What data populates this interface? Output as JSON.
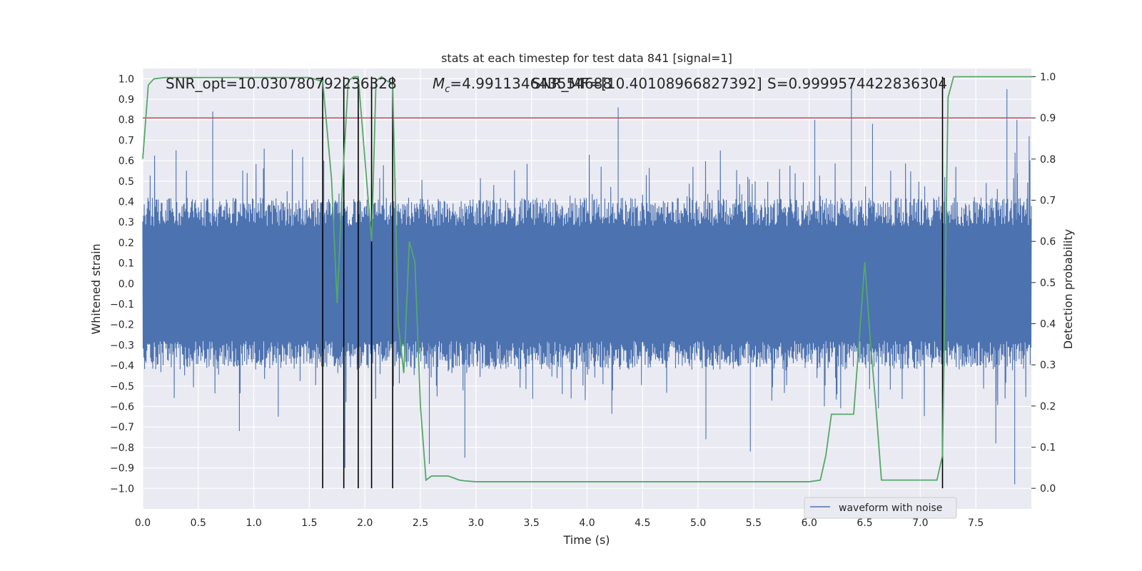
{
  "chart_data": {
    "type": "line",
    "title": "stats at each timestep for test data 841 [signal=1]",
    "xlabel": "Time (s)",
    "ylabel": "Whitened strain",
    "y2label": "Detection probability",
    "xlim": [
      0,
      8
    ],
    "ylim": [
      -1.1,
      1.05
    ],
    "y2lim": [
      -0.05,
      1.02
    ],
    "xticks": [
      "0.0",
      "0.5",
      "1.0",
      "1.5",
      "2.0",
      "2.5",
      "3.0",
      "3.5",
      "4.0",
      "4.5",
      "5.0",
      "5.5",
      "6.0",
      "6.5",
      "7.0",
      "7.5"
    ],
    "yticks": [
      "1.0",
      "0.9",
      "0.8",
      "0.7",
      "0.6",
      "0.5",
      "0.4",
      "0.3",
      "0.2",
      "0.1",
      "0.0",
      "−0.1",
      "−0.2",
      "−0.3",
      "−0.4",
      "−0.5",
      "−0.6",
      "−0.7",
      "−0.8",
      "−0.9",
      "−1.0"
    ],
    "y2ticks": [
      "1.0",
      "0.9",
      "0.8",
      "0.7",
      "0.6",
      "0.5",
      "0.4",
      "0.3",
      "0.2",
      "0.1",
      "0.0"
    ],
    "grid": true,
    "legend": {
      "position": "bottom-right",
      "entries": [
        "waveform with noise"
      ]
    },
    "annotations": [
      "SNR_opt=10.030780792236328",
      "M_c=4.991134643554688",
      "SNR_MF=[10.40108966827392]",
      "S=0.9999574422836304"
    ],
    "threshold": {
      "value": 0.9,
      "axis": "right"
    },
    "event_markers": [
      1.62,
      1.81,
      1.94,
      2.06,
      2.25,
      7.2
    ],
    "waveform": {
      "name": "waveform with noise",
      "envelope_note": "dense noise, mostly within ±0.4 with spikes up to ~±1.0",
      "spike_peaks": [
        [
          0.63,
          0.84
        ],
        [
          0.3,
          0.65
        ],
        [
          1.63,
          0.6
        ],
        [
          4.28,
          0.86
        ],
        [
          6.05,
          0.8
        ],
        [
          6.38,
          0.98
        ],
        [
          6.57,
          0.78
        ],
        [
          7.78,
          0.95
        ],
        [
          7.87,
          0.8
        ],
        [
          7.98,
          0.72
        ],
        [
          1.82,
          -0.9
        ],
        [
          2.58,
          -0.88
        ],
        [
          2.9,
          -0.85
        ],
        [
          5.47,
          -0.82
        ],
        [
          7.85,
          -0.98
        ],
        [
          0.87,
          -0.72
        ],
        [
          1.22,
          -0.65
        ],
        [
          5.07,
          -0.76
        ],
        [
          7.68,
          -0.78
        ]
      ]
    },
    "series": [
      {
        "name": "",
        "axis": "right",
        "x": [
          0.0,
          0.05,
          0.1,
          0.2,
          1.0,
          1.5,
          1.6,
          1.62,
          1.7,
          1.75,
          1.8,
          1.85,
          1.9,
          1.94,
          2.0,
          2.06,
          2.1,
          2.15,
          2.2,
          2.25,
          2.3,
          2.35,
          2.4,
          2.45,
          2.5,
          2.55,
          2.6,
          2.65,
          2.7,
          2.75,
          2.8,
          2.85,
          2.9,
          3.0,
          3.1,
          3.2,
          3.3,
          3.4,
          3.45,
          3.5,
          3.55,
          3.6,
          3.7,
          4.0,
          4.5,
          4.8,
          5.0,
          5.3,
          5.5,
          5.8,
          6.0,
          6.1,
          6.15,
          6.2,
          6.25,
          6.3,
          6.35,
          6.4,
          6.45,
          6.5,
          6.55,
          6.6,
          6.65,
          6.7,
          6.75,
          6.8,
          6.9,
          7.0,
          7.1,
          7.15,
          7.2,
          7.25,
          7.3,
          7.35,
          7.4,
          7.5,
          8.0
        ],
        "y": [
          0.8,
          0.98,
          0.995,
          0.998,
          0.998,
          0.998,
          0.99,
          0.99,
          0.75,
          0.45,
          0.75,
          0.99,
          1.0,
          1.0,
          0.8,
          0.6,
          0.99,
          1.0,
          0.99,
          0.98,
          0.4,
          0.28,
          0.6,
          0.55,
          0.2,
          0.02,
          0.03,
          0.03,
          0.03,
          0.03,
          0.025,
          0.02,
          0.018,
          0.016,
          0.016,
          0.016,
          0.016,
          0.016,
          0.016,
          0.016,
          0.016,
          0.016,
          0.016,
          0.016,
          0.016,
          0.016,
          0.016,
          0.016,
          0.016,
          0.016,
          0.016,
          0.02,
          0.08,
          0.18,
          0.18,
          0.18,
          0.18,
          0.18,
          0.36,
          0.55,
          0.36,
          0.2,
          0.02,
          0.02,
          0.02,
          0.02,
          0.02,
          0.02,
          0.02,
          0.02,
          0.08,
          0.95,
          1.0,
          1.0,
          1.0,
          1.0,
          1.0
        ]
      }
    ]
  }
}
